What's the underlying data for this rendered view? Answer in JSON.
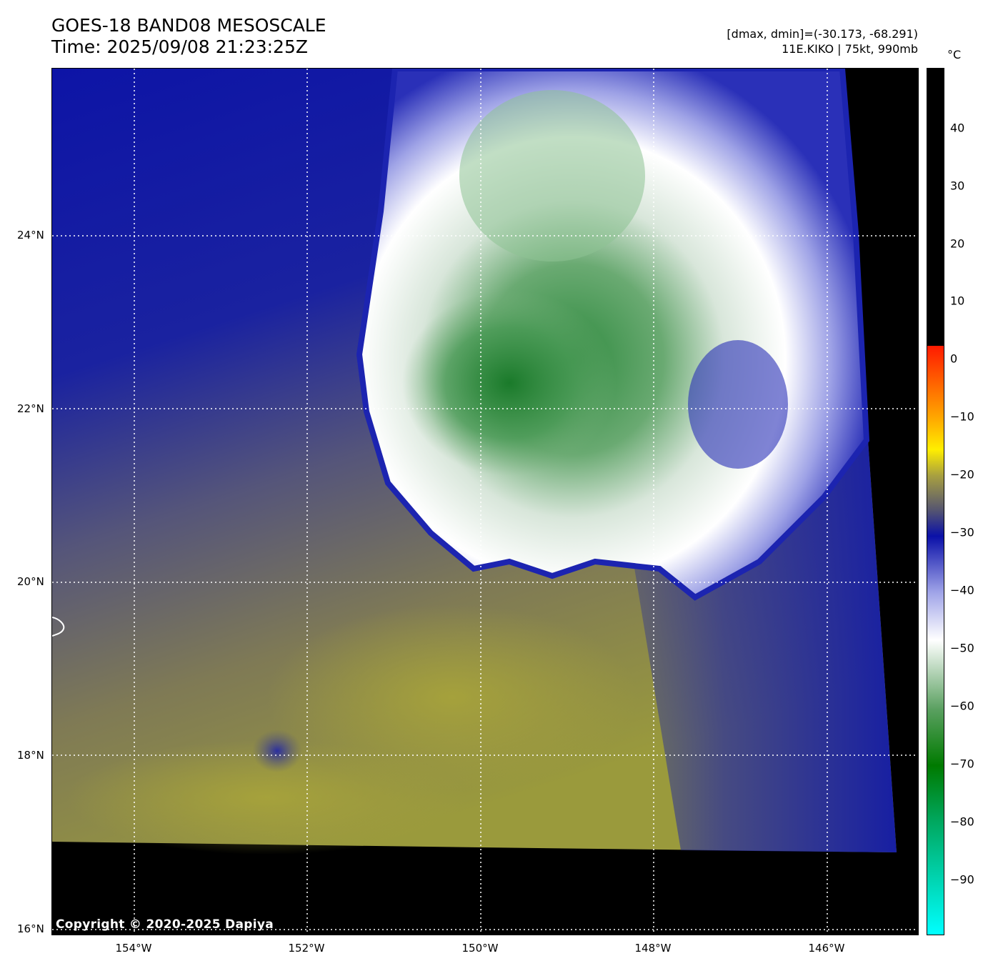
{
  "header": {
    "title": "GOES-18 BAND08 MESOSCALE",
    "time": "Time: 2025/09/08 21:23:25Z",
    "range_info": "[dmax, dmin]=(-30.173, -68.291)",
    "storm_info": "11E.KIKO | 75kt, 990mb"
  },
  "map": {
    "lat_labels": [
      "24°N",
      "22°N",
      "20°N",
      "18°N",
      "16°N"
    ],
    "lon_labels": [
      "154°W",
      "152°W",
      "150°W",
      "148°W",
      "146°W"
    ],
    "copyright": "Copyright © 2020-2025 Dapiya"
  },
  "colorbar": {
    "unit": "°C",
    "tick_labels": [
      "40",
      "30",
      "20",
      "10",
      "0",
      "−10",
      "−20",
      "−30",
      "−40",
      "−50",
      "−60",
      "−70",
      "−80",
      "−90"
    ],
    "colors": {
      "above_zero": "#000000",
      "zero": "#ff1a00",
      "minus10": "#ffaa00",
      "minus15": "#ffee00",
      "minus20": "#a8a040",
      "minus25": "#555570",
      "minus30": "#0a10a8",
      "minus40": "#a0a4e8",
      "minus48": "#ffffff",
      "minus60": "#5aa060",
      "minus70": "#007a00",
      "minus80": "#00a860",
      "minus100": "#00ffff"
    }
  }
}
